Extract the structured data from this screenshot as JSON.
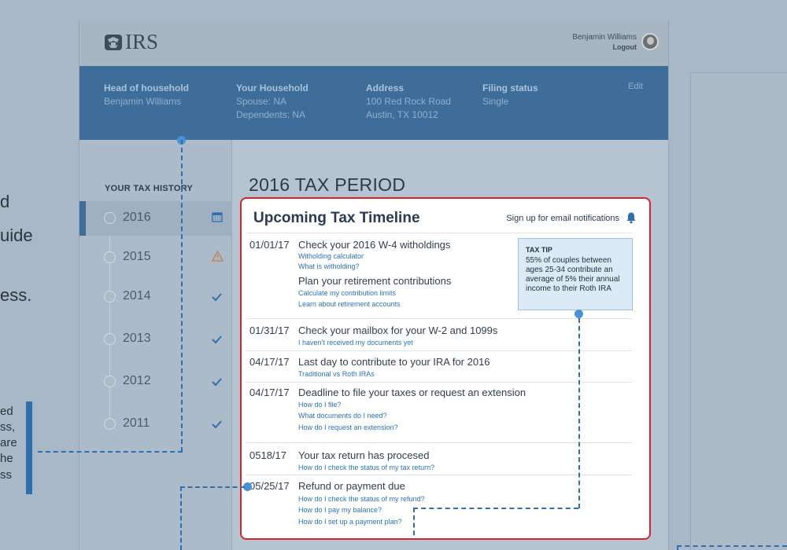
{
  "edge_text": {
    "big_lines": [
      "d",
      "uide",
      "ess."
    ],
    "small_lines": [
      "ed",
      "ss,",
      "are",
      "he",
      "ss"
    ]
  },
  "header": {
    "logo_text": "IRS",
    "user_name": "Benjamin Williams",
    "logout_label": "Logout"
  },
  "household": {
    "head_label": "Head of household",
    "head_value": "Benjamin Williams",
    "your_household_label": "Your Household",
    "spouse": "Spouse: NA",
    "dependents": "Dependents: NA",
    "address_label": "Address",
    "address_line1": "100 Red Rock Road",
    "address_line2": "Austin, TX 10012",
    "filing_label": "Filing status",
    "filing_value": "Single",
    "edit_label": "Edit"
  },
  "sidebar": {
    "title": "YOUR TAX HISTORY",
    "years": [
      {
        "year": "2016",
        "status": "calendar-icon"
      },
      {
        "year": "2015",
        "status": "warning-icon"
      },
      {
        "year": "2014",
        "status": "check-icon"
      },
      {
        "year": "2013",
        "status": "check-icon"
      },
      {
        "year": "2012",
        "status": "check-icon"
      },
      {
        "year": "2011",
        "status": "check-icon"
      }
    ]
  },
  "main": {
    "period_title": "2016 TAX PERIOD"
  },
  "timeline": {
    "title": "Upcoming Tax Timeline",
    "notify_label": "Sign up for email notifications",
    "tip": {
      "title": "TAX TIP",
      "body": "55% of couples between ages 25-34 contribute an average of 5% their annual income to their Roth IRA"
    },
    "items": [
      {
        "date": "01/01/17",
        "text": "Check your 2016 W-4 witholdings",
        "links": [
          "Witholding calculator",
          "What is witholding?"
        ]
      },
      {
        "date": "",
        "text": "Plan your retirement contributions",
        "links": [
          "Calculate my contribution limits",
          "Learn about retirement accounts"
        ]
      },
      {
        "date": "01/31/17",
        "text": "Check your mailbox for your W-2 and 1099s",
        "links": [
          "I haven't received my documents yet"
        ]
      },
      {
        "date": "04/17/17",
        "text": "Last day to contribute to your IRA for 2016",
        "links": [
          "Traditional vs Roth IRAs"
        ]
      },
      {
        "date": "04/17/17",
        "text": "Deadline to file your taxes or request an extension",
        "links": [
          "How do I file?",
          "What documents do I need?",
          "How do I request an extension?"
        ]
      },
      {
        "date": "0518/17",
        "text": "Your tax return has procesed",
        "links": [
          "How do I check the status of my tax return?"
        ]
      },
      {
        "date": "05/25/17",
        "text": "Refund or payment due",
        "links": [
          "How do I check the status of my refund?",
          "How do I pay my balance?",
          "How do I set up a payment plan?"
        ]
      }
    ]
  },
  "colors": {
    "brand_blue": "#3f6d9a",
    "accent_link": "#2a72c0",
    "highlight_border": "#d8232a"
  }
}
